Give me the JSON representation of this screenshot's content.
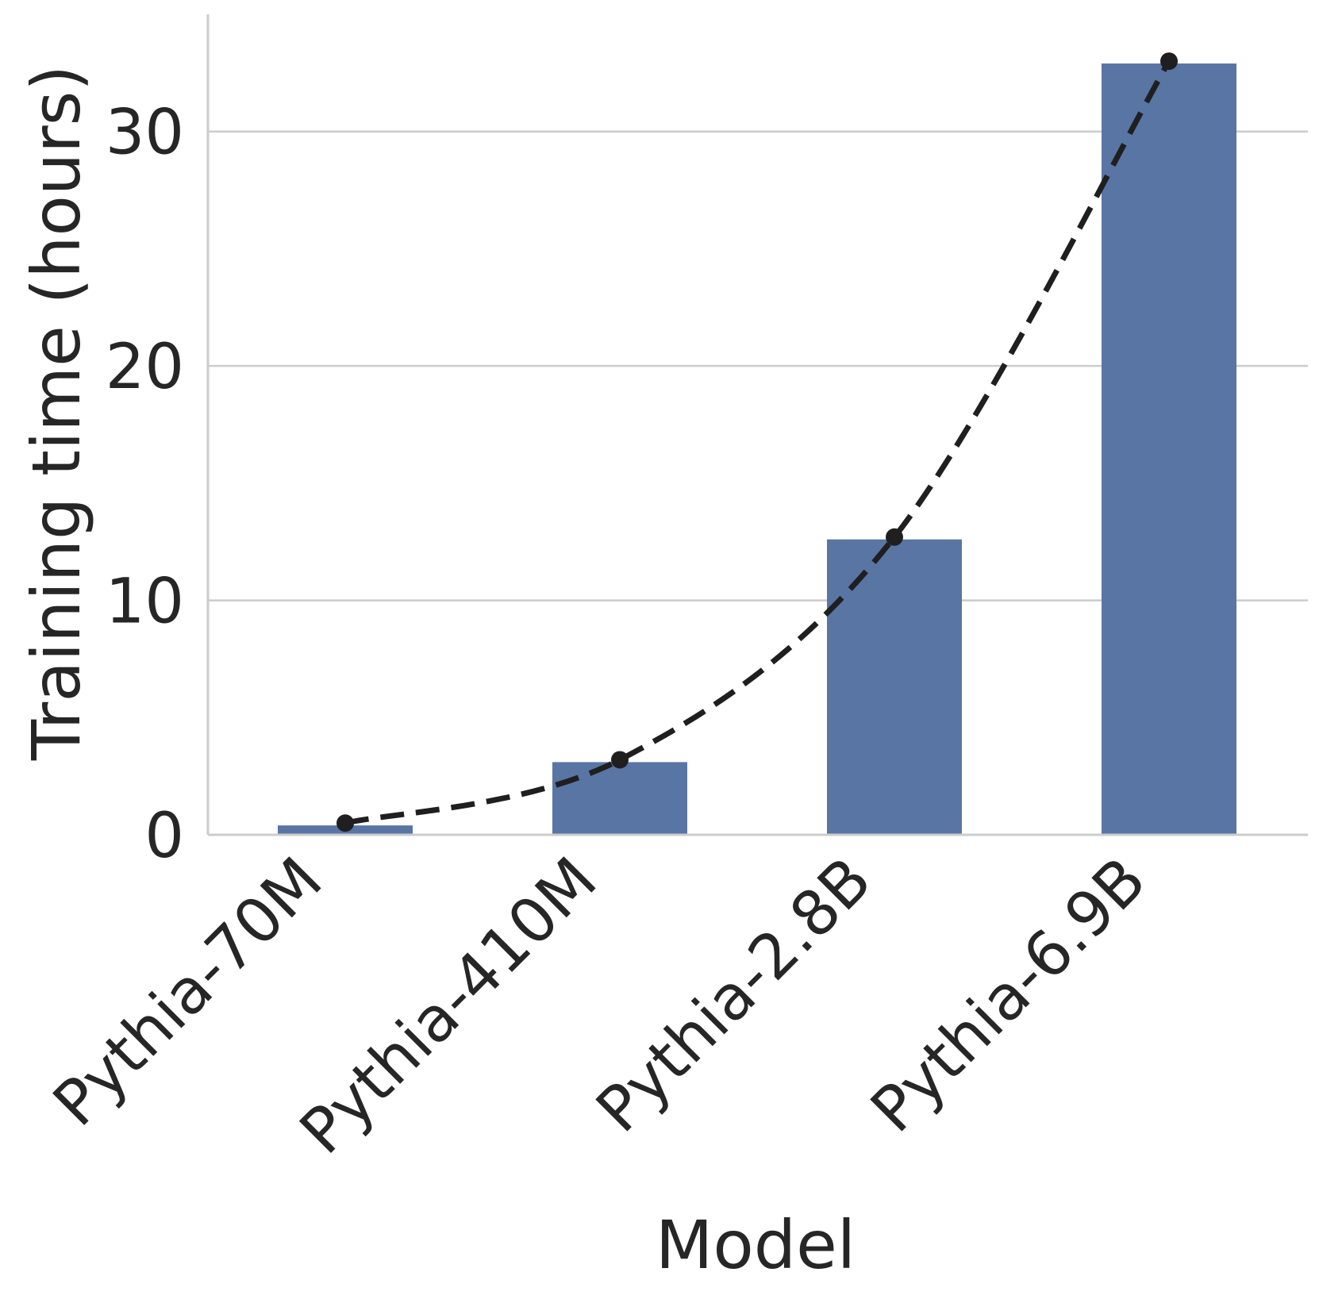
{
  "chart_data": {
    "type": "bar",
    "categories": [
      "Pythia-70M",
      "Pythia-410M",
      "Pythia-2.8B",
      "Pythia-6.9B"
    ],
    "values": [
      0.4,
      3.1,
      12.6,
      32.9
    ],
    "xlabel": "Model",
    "ylabel": "Training time (hours)",
    "ylim": [
      0,
      35
    ],
    "yticks": [
      0,
      10,
      20,
      30
    ],
    "ytick_labels": [
      "0",
      "10",
      "20",
      "30"
    ],
    "grid": "horizontal",
    "overlay_line": {
      "style": "dashed",
      "markers": true,
      "values": [
        0.5,
        3.2,
        12.7,
        33.0
      ]
    },
    "colors": {
      "bar": "#5975a4",
      "line": "#1f1f1f",
      "grid": "#cccccc",
      "axis": "#cccccc",
      "text": "#262626"
    }
  }
}
